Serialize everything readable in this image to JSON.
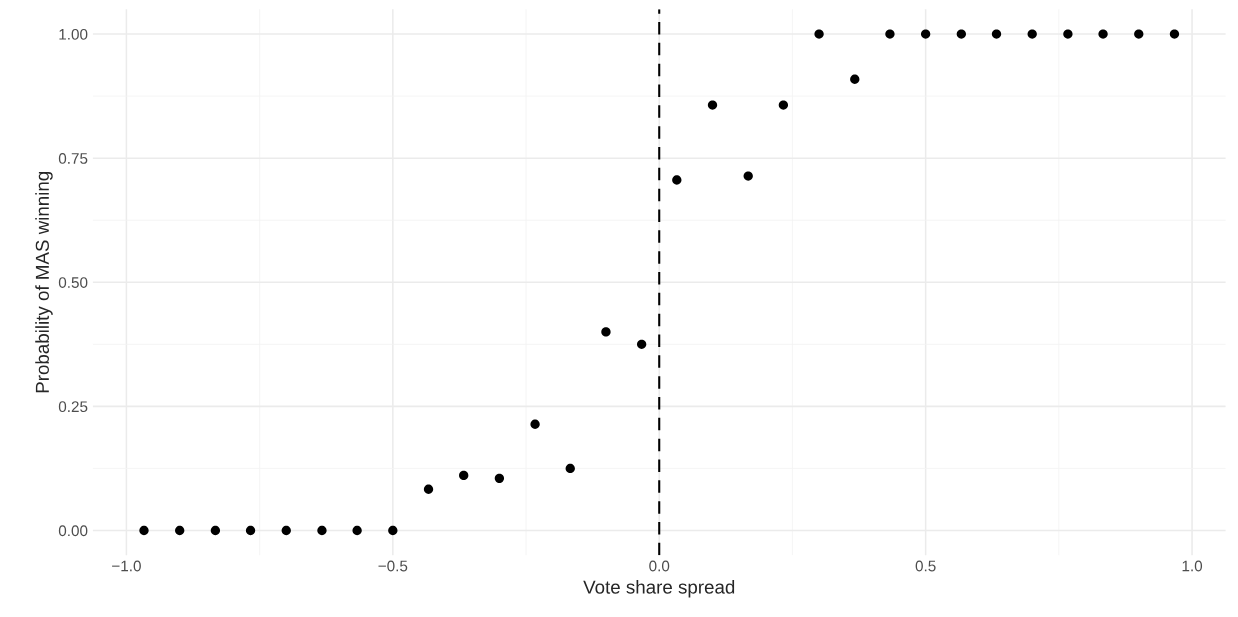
{
  "chart_data": {
    "type": "scatter",
    "xlabel": "Vote share spread",
    "ylabel": "Probability of MAS winning",
    "x": [
      -0.967,
      -0.9,
      -0.833,
      -0.767,
      -0.7,
      -0.633,
      -0.567,
      -0.5,
      -0.433,
      -0.367,
      -0.3,
      -0.233,
      -0.167,
      -0.1,
      -0.033,
      0.033,
      0.1,
      0.167,
      0.233,
      0.3,
      0.367,
      0.433,
      0.5,
      0.567,
      0.633,
      0.7,
      0.767,
      0.833,
      0.9,
      0.967
    ],
    "series": [
      {
        "color": "#000000",
        "values": [
          0,
          0,
          0,
          0,
          0,
          0,
          0,
          0,
          0.083,
          0.111,
          0.105,
          0.214,
          0.125,
          0.4,
          0.375,
          0.706,
          0.857,
          0.714,
          0.857,
          1,
          0.909,
          1,
          1,
          1,
          1,
          1,
          1,
          1,
          1,
          1
        ]
      }
    ],
    "xlim": [
      -1.063,
      1.063
    ],
    "ylim": [
      -0.05,
      1.05
    ],
    "xticks": [
      {
        "value": -1,
        "label": "−1.0"
      },
      {
        "value": -0.5,
        "label": "−0.5"
      },
      {
        "value": 0,
        "label": "0.0"
      },
      {
        "value": 0.5,
        "label": "0.5"
      },
      {
        "value": 1,
        "label": "1.0"
      }
    ],
    "yticks": [
      {
        "value": 0,
        "label": "0.00"
      },
      {
        "value": 0.25,
        "label": "0.25"
      },
      {
        "value": 0.5,
        "label": "0.50"
      },
      {
        "value": 0.75,
        "label": "0.75"
      },
      {
        "value": 1,
        "label": "1.00"
      }
    ],
    "ref_lines": [
      {
        "axis": "x",
        "value": 0,
        "color": "#000000",
        "line_style": "dashed"
      }
    ],
    "grid": true,
    "marker": "circle",
    "legend": false
  }
}
